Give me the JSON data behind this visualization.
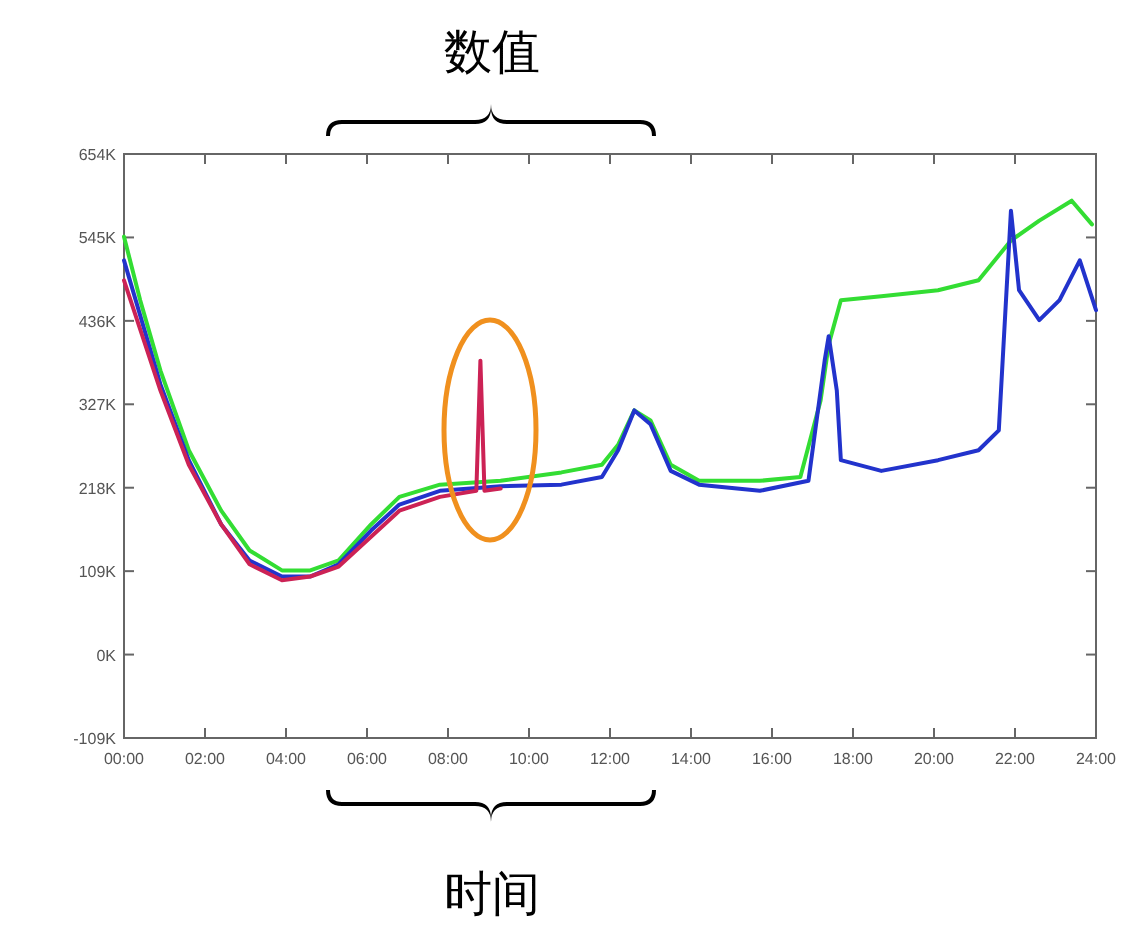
{
  "chart_data": {
    "type": "line",
    "annotations": [
      "数值",
      "时间"
    ],
    "xlim": [
      0,
      24
    ],
    "ylim": [
      -109,
      654
    ],
    "xticks": [
      {
        "value": 0,
        "label": "00:00"
      },
      {
        "value": 2,
        "label": "02:00"
      },
      {
        "value": 4,
        "label": "04:00"
      },
      {
        "value": 6,
        "label": "06:00"
      },
      {
        "value": 8,
        "label": "08:00"
      },
      {
        "value": 10,
        "label": "10:00"
      },
      {
        "value": 12,
        "label": "12:00"
      },
      {
        "value": 14,
        "label": "14:00"
      },
      {
        "value": 16,
        "label": "16:00"
      },
      {
        "value": 18,
        "label": "18:00"
      },
      {
        "value": 20,
        "label": "20:00"
      },
      {
        "value": 22,
        "label": "22:00"
      },
      {
        "value": 24,
        "label": "24:00"
      }
    ],
    "yticks": [
      {
        "value": -109,
        "label": "-109K"
      },
      {
        "value": 0,
        "label": "0K"
      },
      {
        "value": 109,
        "label": "109K"
      },
      {
        "value": 218,
        "label": "218K"
      },
      {
        "value": 327,
        "label": "327K"
      },
      {
        "value": 436,
        "label": "436K"
      },
      {
        "value": 545,
        "label": "545K"
      },
      {
        "value": 654,
        "label": "654K"
      }
    ],
    "grid": false,
    "series": [
      {
        "color": "#33dd33",
        "x": [
          0,
          0.4,
          0.9,
          1.6,
          2.4,
          3.1,
          3.9,
          4.6,
          5.3,
          6.1,
          6.8,
          7.8,
          9.3,
          10.8,
          11.8,
          12.2,
          12.6,
          13,
          13.5,
          14.2,
          15.7,
          16.7,
          17.2,
          17.4,
          17.7,
          18.7,
          20.1,
          21.1,
          21.9,
          22.6,
          23.4,
          23.9
        ],
        "values": [
          546,
          463,
          371,
          267,
          188,
          136,
          110,
          110,
          123,
          170,
          206,
          222,
          227,
          238,
          248,
          274,
          319,
          306,
          248,
          227,
          227,
          232,
          332,
          405,
          463,
          468,
          476,
          489,
          541,
          567,
          593,
          562
        ]
      },
      {
        "color": "#2233cc",
        "x": [
          0,
          0.9,
          1.6,
          2.4,
          3.1,
          3.9,
          4.6,
          5.3,
          6.1,
          6.8,
          7.8,
          9.3,
          10.8,
          11.8,
          12.2,
          12.6,
          13,
          13.5,
          14.2,
          15.7,
          16.9,
          17.3,
          17.4,
          17.6,
          17.7,
          18.7,
          20.1,
          21.1,
          21.6,
          21.9,
          22.1,
          22.6,
          23.1,
          23.6,
          24
        ],
        "values": [
          515,
          353,
          254,
          170,
          123,
          102,
          102,
          118,
          162,
          196,
          214,
          220,
          222,
          232,
          267,
          319,
          301,
          240,
          222,
          214,
          227,
          384,
          416,
          345,
          254,
          240,
          254,
          267,
          293,
          580,
          476,
          437,
          463,
          515,
          450
        ]
      },
      {
        "color": "#cc2255",
        "x": [
          0,
          0.9,
          1.6,
          2.4,
          3.1,
          3.9,
          4.6,
          5.3,
          6.1,
          6.8,
          7.8,
          8.7,
          8.8,
          8.9,
          9.3
        ],
        "values": [
          489,
          345,
          248,
          170,
          118,
          97,
          102,
          115,
          154,
          188,
          206,
          214,
          384,
          214,
          217
        ]
      }
    ]
  }
}
